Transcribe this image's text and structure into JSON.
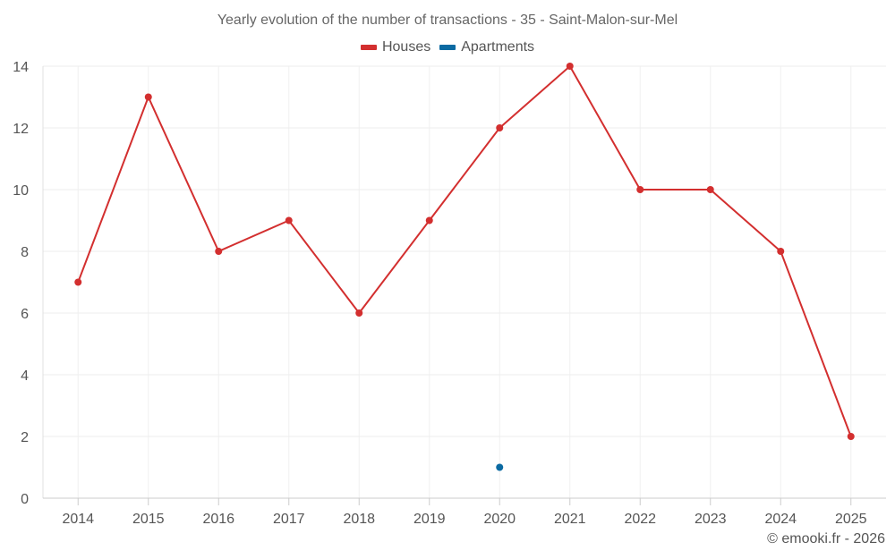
{
  "chart_data": {
    "type": "line",
    "title": "Yearly evolution of the number of transactions - 35 - Saint-Malon-sur-Mel",
    "categories": [
      "2014",
      "2015",
      "2016",
      "2017",
      "2018",
      "2019",
      "2020",
      "2021",
      "2022",
      "2023",
      "2024",
      "2025"
    ],
    "series": [
      {
        "name": "Houses",
        "color": "#d32f2f",
        "values": [
          7,
          13,
          8,
          9,
          6,
          9,
          12,
          14,
          10,
          10,
          8,
          2
        ]
      },
      {
        "name": "Apartments",
        "color": "#0b6aa2",
        "values": [
          null,
          null,
          null,
          null,
          null,
          null,
          1,
          null,
          null,
          null,
          null,
          null
        ]
      }
    ],
    "ylim": [
      0,
      14
    ],
    "yticks": [
      0,
      2,
      4,
      6,
      8,
      10,
      12,
      14
    ],
    "grid": true,
    "legend_position": "top-center"
  },
  "credit": "© emooki.fr - 2026"
}
